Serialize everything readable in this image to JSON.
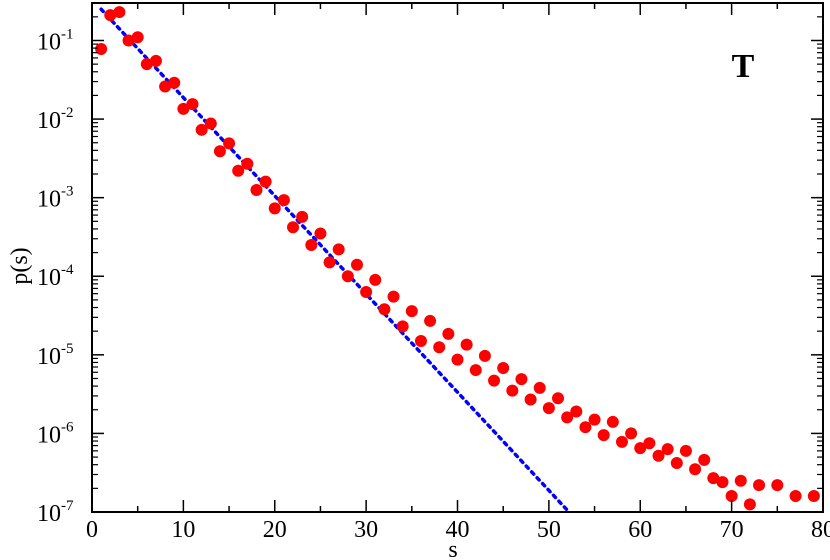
{
  "chart_data": {
    "type": "scatter",
    "title": "",
    "panel_label": "T",
    "xlabel": "s",
    "ylabel": "p(s)",
    "xlim": [
      0,
      80
    ],
    "ylim": [
      1e-07,
      0.3
    ],
    "yscale": "log",
    "grid": false,
    "x_ticks": [
      0,
      10,
      20,
      30,
      40,
      50,
      60,
      70,
      80
    ],
    "x_tick_labels": [
      "0",
      "10",
      "20",
      "30",
      "40",
      "50",
      "60",
      "70",
      "80"
    ],
    "y_ticks": [
      {
        "value": 1e-07,
        "base": "10",
        "exp": "-7"
      },
      {
        "value": 1e-06,
        "base": "10",
        "exp": "-6"
      },
      {
        "value": 1e-05,
        "base": "10",
        "exp": "-5"
      },
      {
        "value": 0.0001,
        "base": "10",
        "exp": "-4"
      },
      {
        "value": 0.001,
        "base": "10",
        "exp": "-3"
      },
      {
        "value": 0.01,
        "base": "10",
        "exp": "-2"
      },
      {
        "value": 0.1,
        "base": "10",
        "exp": "-1"
      }
    ],
    "series": [
      {
        "style": "markers",
        "color": "#ff0000",
        "x": [
          1,
          2,
          3,
          4,
          5,
          6,
          7,
          8,
          9,
          10,
          11,
          12,
          13,
          14,
          15,
          16,
          17,
          18,
          19,
          20,
          21,
          22,
          23,
          24,
          25,
          26,
          27,
          28,
          29,
          30,
          31,
          32,
          33,
          34,
          35,
          36,
          37,
          38,
          39,
          40,
          41,
          42,
          43,
          44,
          45,
          46,
          47,
          48,
          49,
          50,
          51,
          52,
          53,
          54,
          55,
          56,
          57,
          58,
          59,
          60,
          61,
          62,
          63,
          64,
          65,
          66,
          67,
          68,
          69,
          70,
          71,
          72,
          73,
          75,
          77,
          79
        ],
        "y": [
          0.078,
          0.21,
          0.23,
          0.1,
          0.11,
          0.05,
          0.055,
          0.026,
          0.029,
          0.0135,
          0.0155,
          0.0073,
          0.0088,
          0.0039,
          0.0049,
          0.0022,
          0.0027,
          0.00125,
          0.0016,
          0.00073,
          0.00093,
          0.00042,
          0.00057,
          0.00025,
          0.00035,
          0.00015,
          0.00022,
          0.0001,
          0.00014,
          6.3e-05,
          9e-05,
          3.8e-05,
          5.5e-05,
          2.3e-05,
          3.6e-05,
          1.5e-05,
          2.7e-05,
          1.25e-05,
          1.85e-05,
          8.7e-06,
          1.35e-05,
          6.4e-06,
          9.7e-06,
          4.7e-06,
          6.8e-06,
          3.5e-06,
          4.9e-06,
          2.7e-06,
          3.8e-06,
          2.1e-06,
          2.8e-06,
          1.6e-06,
          1.9e-06,
          1.2e-06,
          1.5e-06,
          9.5e-07,
          1.4e-06,
          7.8e-07,
          1e-06,
          6.5e-07,
          7.5e-07,
          5.2e-07,
          6.3e-07,
          4.2e-07,
          6e-07,
          3.5e-07,
          4.6e-07,
          2.7e-07,
          2.4e-07,
          1.6e-07,
          2.5e-07,
          1.25e-07,
          2.2e-07,
          2.2e-07,
          1.6e-07,
          1.6e-07
        ]
      },
      {
        "style": "dotted-line",
        "color": "#0000ff",
        "x": [
          1,
          52.2
        ],
        "y": [
          0.25,
          1e-07
        ]
      }
    ]
  }
}
